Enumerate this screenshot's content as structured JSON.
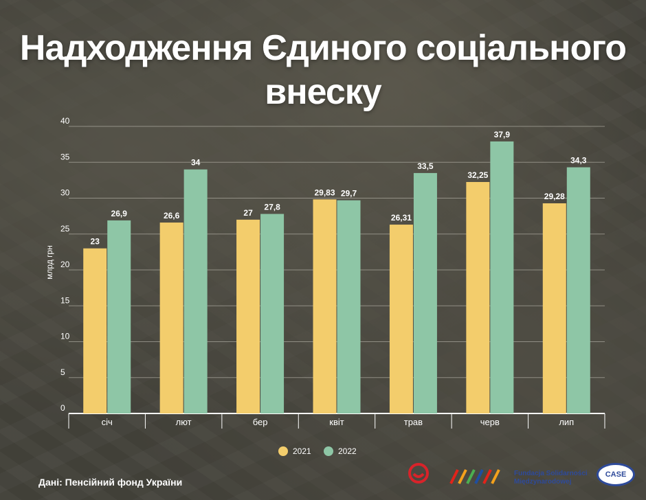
{
  "title": "Надходження Єдиного соціального внеску",
  "source": "Дані: Пенсійний фонд України",
  "logos": {
    "fundacja": "Fundacja Solidarności Międzynarodowej",
    "case": "CASE"
  },
  "colors": {
    "series_2021": "#f3cd6c",
    "series_2022": "#8ec6a6",
    "axis_text": "#ffffff",
    "grid": "#c9c6bb"
  },
  "chart_data": {
    "type": "bar",
    "ylabel": "млрд грн",
    "ylim": [
      0,
      40
    ],
    "yticks": [
      0,
      5,
      10,
      15,
      20,
      25,
      30,
      35,
      40
    ],
    "categories": [
      "січ",
      "лют",
      "бер",
      "квіт",
      "трав",
      "черв",
      "лип"
    ],
    "series": [
      {
        "name": "2021",
        "values": [
          23,
          26.6,
          27,
          29.83,
          26.31,
          32.25,
          29.28
        ],
        "labels": [
          "23",
          "26,6",
          "27",
          "29,83",
          "26,31",
          "32,25",
          "29,28"
        ]
      },
      {
        "name": "2022",
        "values": [
          26.9,
          34,
          27.8,
          29.7,
          33.5,
          37.9,
          34.3
        ],
        "labels": [
          "26,9",
          "34",
          "27,8",
          "29,7",
          "33,5",
          "37,9",
          "34,3"
        ]
      }
    ],
    "grid": true,
    "legend": "bottom"
  }
}
